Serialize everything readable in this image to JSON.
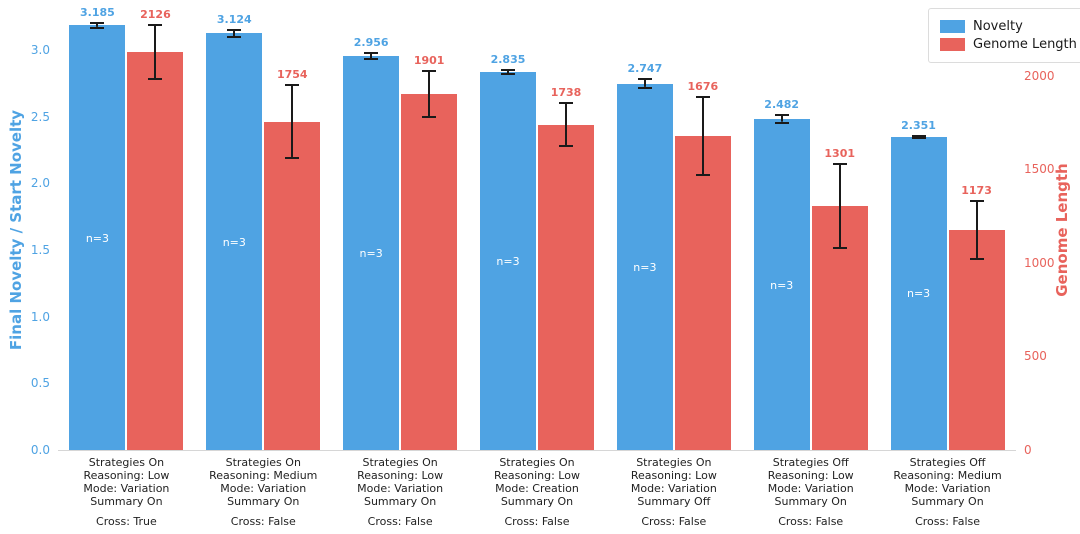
{
  "left_axis": {
    "label": "Final Novelty / Start Novelty",
    "color": "#4fa3e3",
    "max": 3.3,
    "ticks": [
      {
        "label": "0.0",
        "value": 0
      },
      {
        "label": "0.5",
        "value": 0.5
      },
      {
        "label": "1.0",
        "value": 1
      },
      {
        "label": "1.5",
        "value": 1.5
      },
      {
        "label": "2.0",
        "value": 2
      },
      {
        "label": "2.5",
        "value": 2.5
      },
      {
        "label": "3.0",
        "value": 3
      }
    ]
  },
  "right_axis": {
    "label": "Genome Length",
    "color": "#e8635c",
    "max": 2350,
    "ticks": [
      {
        "label": "0",
        "value": 0
      },
      {
        "label": "500",
        "value": 500
      },
      {
        "label": "1000",
        "value": 1000
      },
      {
        "label": "1500",
        "value": 1500
      },
      {
        "label": "2000",
        "value": 2000
      }
    ]
  },
  "legend": [
    {
      "label": "Novelty",
      "color": "#4fa3e3"
    },
    {
      "label": "Genome Length",
      "color": "#e8635c"
    }
  ],
  "chart_data": {
    "type": "bar",
    "dual_axis": true,
    "title": "",
    "bar_annotation": "n=3",
    "series": [
      {
        "name": "Novelty",
        "axis": "left",
        "color": "#4fa3e3",
        "values": [
          3.185,
          3.124,
          2.956,
          2.835,
          2.747,
          2.482,
          2.351
        ],
        "errors": [
          0.025,
          0.035,
          0.03,
          0.025,
          0.04,
          0.035,
          0.015
        ]
      },
      {
        "name": "Genome Length",
        "axis": "right",
        "color": "#e8635c",
        "values": [
          2126,
          1754,
          1901,
          1738,
          1676,
          1301,
          1173
        ],
        "errors": [
          150,
          200,
          130,
          120,
          215,
          230,
          160
        ]
      }
    ],
    "value_labels": {
      "left": [
        "3.185",
        "3.124",
        "2.956",
        "2.835",
        "2.747",
        "2.482",
        "2.351"
      ],
      "right": [
        "2126",
        "1754",
        "1901",
        "1738",
        "1676",
        "1301",
        "1173"
      ]
    },
    "categories": [
      {
        "lines": [
          "Strategies On",
          "Reasoning: Low",
          "Mode: Variation",
          "Summary On"
        ],
        "cross": "Cross: True"
      },
      {
        "lines": [
          "Strategies On",
          "Reasoning: Medium",
          "Mode: Variation",
          "Summary On"
        ],
        "cross": "Cross: False"
      },
      {
        "lines": [
          "Strategies On",
          "Reasoning: Low",
          "Mode: Variation",
          "Summary On"
        ],
        "cross": "Cross: False"
      },
      {
        "lines": [
          "Strategies On",
          "Reasoning: Low",
          "Mode: Creation",
          "Summary On"
        ],
        "cross": "Cross: False"
      },
      {
        "lines": [
          "Strategies On",
          "Reasoning: Low",
          "Mode: Variation",
          "Summary Off"
        ],
        "cross": "Cross: False"
      },
      {
        "lines": [
          "Strategies Off",
          "Reasoning: Low",
          "Mode: Variation",
          "Summary On"
        ],
        "cross": "Cross: False"
      },
      {
        "lines": [
          "Strategies Off",
          "Reasoning: Medium",
          "Mode: Variation",
          "Summary On"
        ],
        "cross": "Cross: False"
      }
    ],
    "left_ylim": [
      0,
      3.3
    ],
    "right_ylim": [
      0,
      2350
    ],
    "grid": false,
    "legend_position": "upper right"
  }
}
